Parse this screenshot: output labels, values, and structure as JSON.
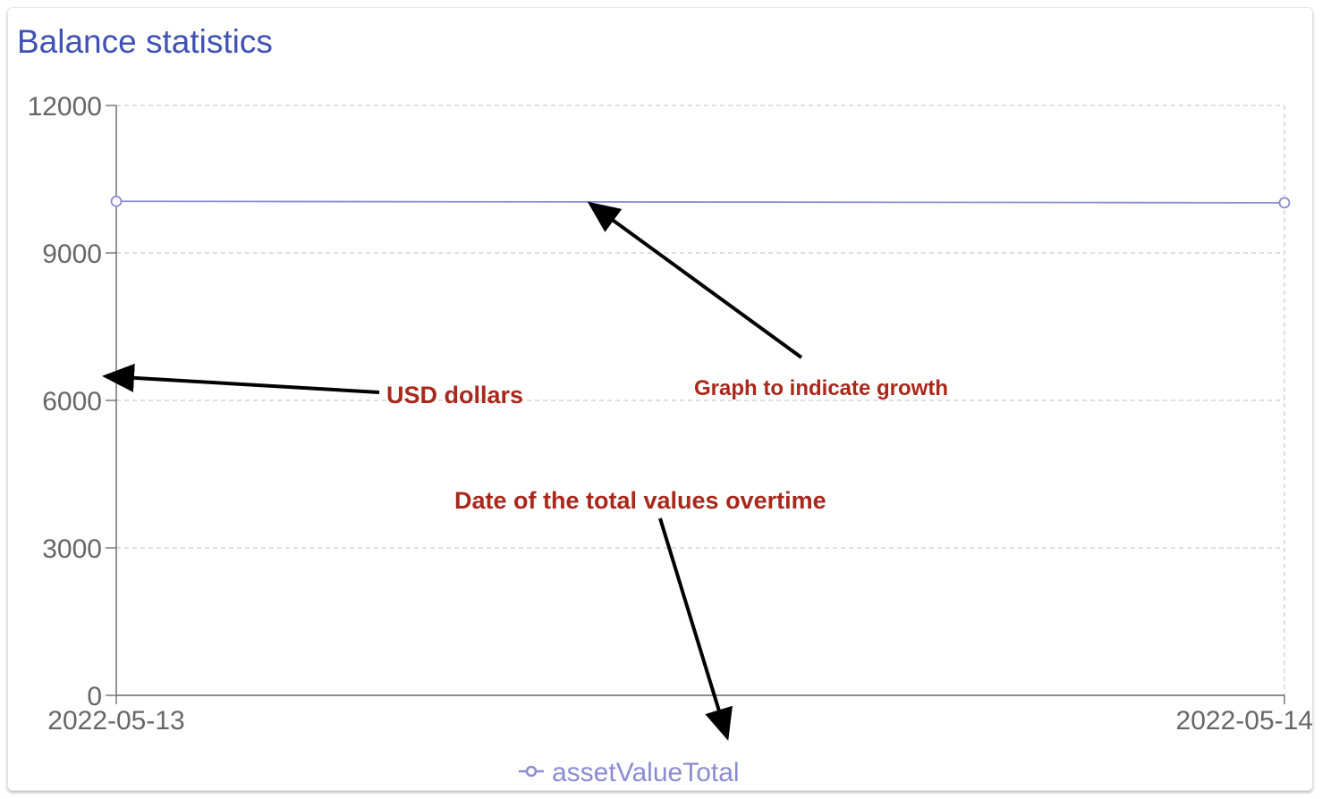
{
  "card": {
    "title": "Balance statistics",
    "title_color": "#3f51b5"
  },
  "chart_data": {
    "type": "line",
    "x": [
      "2022-05-13",
      "2022-05-14"
    ],
    "series": [
      {
        "name": "assetValueTotal",
        "values": [
          10050,
          10020
        ],
        "color": "#8a8cd1"
      }
    ],
    "ylim": [
      0,
      12000
    ],
    "yticks": [
      0,
      3000,
      6000,
      9000,
      12000
    ],
    "grid": true,
    "legend": "bottom-center"
  },
  "annotations": [
    {
      "id": "growth",
      "text": "Graph to indicate growth"
    },
    {
      "id": "usd",
      "text": "USD dollars"
    },
    {
      "id": "date",
      "text": "Date of the total values overtime"
    }
  ],
  "annotation_color": "#a8281c",
  "axis_color": "#666666",
  "grid_color": "#cccccc"
}
